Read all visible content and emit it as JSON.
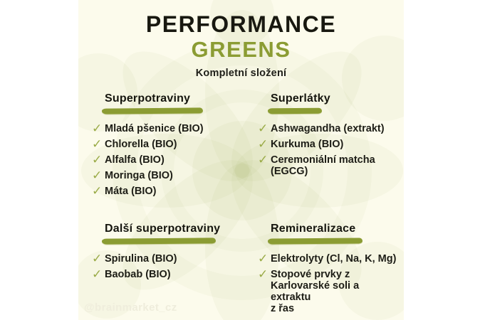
{
  "title": {
    "line1": "PERFORMANCE",
    "line2": "GREENS",
    "subtitle": "Kompletní složení"
  },
  "colors": {
    "canvas_background": "#FCFBEC",
    "accent_green": "#8B9C33",
    "check_green": "#9AAB47",
    "text_black": "#1d1d16",
    "watermark_gray": "#EFEDDC"
  },
  "icons": {
    "check": "✓"
  },
  "sections": [
    {
      "id": "superpotraviny",
      "title": "Superpotraviny",
      "items": [
        "Mladá pšenice (BIO)",
        "Chlorella (BIO)",
        "Alfalfa (BIO)",
        "Moringa (BIO)",
        "Máta (BIO)"
      ]
    },
    {
      "id": "superlatky",
      "title": "Superlátky",
      "items": [
        "Ashwagandha (extrakt)",
        "Kurkuma (BIO)",
        "Ceremoniální matcha\n(EGCG)"
      ]
    },
    {
      "id": "dalsi-superpotraviny",
      "title": "Další superpotraviny",
      "items": [
        "Spirulina (BIO)",
        "Baobab (BIO)"
      ]
    },
    {
      "id": "remineralizace",
      "title": "Remineralizace",
      "items": [
        "Elektrolyty (Cl, Na, K, Mg)",
        "Stopové prvky z\nKarlovarské soli a extraktu\nz řas"
      ]
    }
  ],
  "watermark": "@brainmarket_cz"
}
